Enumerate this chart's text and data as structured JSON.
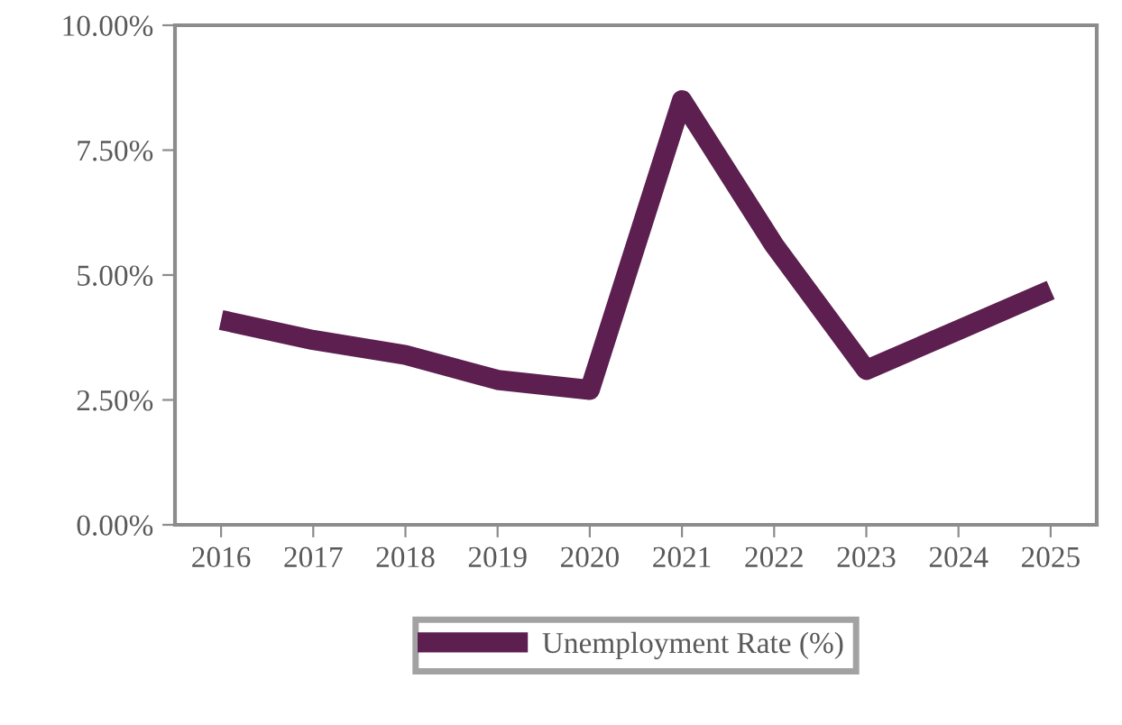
{
  "chart_data": {
    "type": "line",
    "categories": [
      "2016",
      "2017",
      "2018",
      "2019",
      "2020",
      "2021",
      "2022",
      "2023",
      "2024",
      "2025"
    ],
    "series": [
      {
        "name": "Unemployment Rate (%)",
        "color": "#5c1f4f",
        "values": [
          4.1,
          3.7,
          3.4,
          2.9,
          2.7,
          8.5,
          5.6,
          3.1,
          3.9,
          4.7
        ]
      }
    ],
    "ylim": [
      0,
      10
    ],
    "yticks": [
      {
        "value": 0,
        "label": "0.00%"
      },
      {
        "value": 2.5,
        "label": "2.50%"
      },
      {
        "value": 5,
        "label": "5.00%"
      },
      {
        "value": 7.5,
        "label": "7.50%"
      },
      {
        "value": 10,
        "label": "10.00%"
      }
    ],
    "grid": false,
    "legend": "bottom",
    "marker": "none",
    "line_style": "solid"
  }
}
